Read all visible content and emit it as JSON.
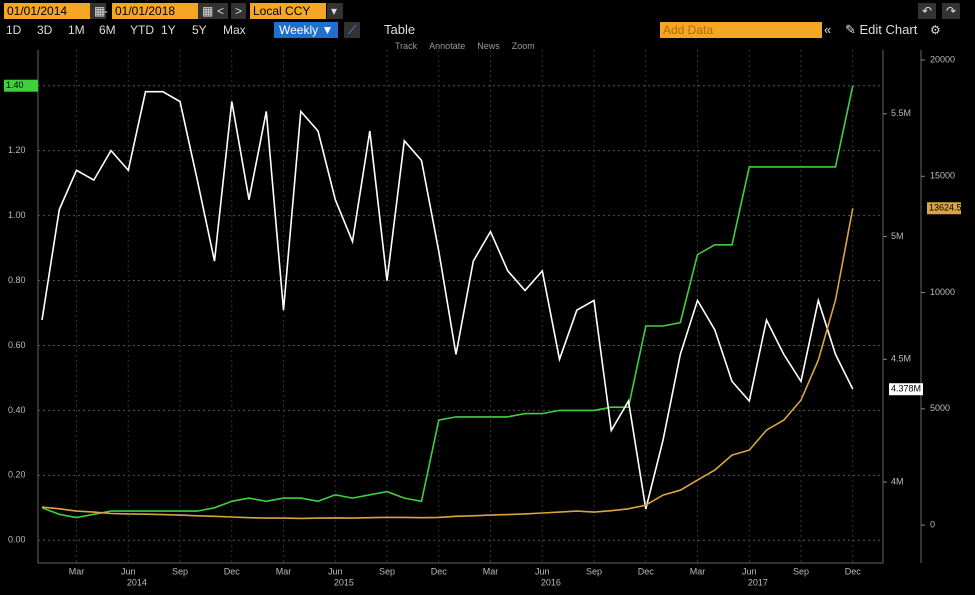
{
  "toolbar": {
    "start_date": "01/01/2014",
    "end_date": "01/01/2018",
    "currency": "Local CCY",
    "periods": [
      "1D",
      "3D",
      "1M",
      "6M",
      "YTD",
      "1Y",
      "5Y",
      "Max"
    ],
    "frequency": "Weekly ▼",
    "table": "Table",
    "add_data": "Add Data",
    "edit_chart": "Edit Chart",
    "tools": [
      "Track",
      "Annotate",
      "News",
      "Zoom"
    ]
  },
  "chart_data": {
    "type": "line",
    "x": [
      "2014-01",
      "2014-02",
      "2014-03",
      "2014-04",
      "2014-05",
      "2014-06",
      "2014-07",
      "2014-08",
      "2014-09",
      "2014-10",
      "2014-11",
      "2014-12",
      "2015-01",
      "2015-02",
      "2015-03",
      "2015-04",
      "2015-05",
      "2015-06",
      "2015-07",
      "2015-08",
      "2015-09",
      "2015-10",
      "2015-11",
      "2015-12",
      "2016-01",
      "2016-02",
      "2016-03",
      "2016-04",
      "2016-05",
      "2016-06",
      "2016-07",
      "2016-08",
      "2016-09",
      "2016-10",
      "2016-11",
      "2016-12",
      "2017-01",
      "2017-02",
      "2017-03",
      "2017-04",
      "2017-05",
      "2017-06",
      "2017-07",
      "2017-08",
      "2017-09",
      "2017-10",
      "2017-11",
      "2017-12"
    ],
    "xticks": [
      {
        "value": "2014-03",
        "label": "Mar"
      },
      {
        "value": "2014-06",
        "label": "Jun"
      },
      {
        "value": "2014-09",
        "label": "Sep"
      },
      {
        "value": "2014-12",
        "label": "Dec"
      },
      {
        "value": "2015-03",
        "label": "Mar"
      },
      {
        "value": "2015-06",
        "label": "Jun"
      },
      {
        "value": "2015-09",
        "label": "Sep"
      },
      {
        "value": "2015-12",
        "label": "Dec"
      },
      {
        "value": "2016-03",
        "label": "Mar"
      },
      {
        "value": "2016-06",
        "label": "Jun"
      },
      {
        "value": "2016-09",
        "label": "Sep"
      },
      {
        "value": "2016-12",
        "label": "Dec"
      },
      {
        "value": "2017-03",
        "label": "Mar"
      },
      {
        "value": "2017-06",
        "label": "Jun"
      },
      {
        "value": "2017-09",
        "label": "Sep"
      },
      {
        "value": "2017-12",
        "label": "Dec"
      }
    ],
    "year_labels": [
      {
        "value": "2014-06",
        "label": "2014"
      },
      {
        "value": "2015-06",
        "label": "2015"
      },
      {
        "value": "2016-06",
        "label": "2016"
      },
      {
        "value": "2017-06",
        "label": "2017"
      }
    ],
    "ylim": [
      -0.07,
      1.51
    ],
    "yticks": [
      {
        "value": 0,
        "label": "0.00"
      },
      {
        "value": 0.2,
        "label": "0.20"
      },
      {
        "value": 0.4,
        "label": "0.40"
      },
      {
        "value": 0.6,
        "label": "0.60"
      },
      {
        "value": 0.8,
        "label": "0.80"
      },
      {
        "value": 1.0,
        "label": "1.00"
      },
      {
        "value": 1.2,
        "label": "1.20"
      },
      {
        "value": 1.4,
        "label": "1.40"
      }
    ],
    "y2lim": [
      3670000,
      5760000
    ],
    "y2ticks": [
      {
        "value": 4000000,
        "label": "4M"
      },
      {
        "value": 4500000,
        "label": "4.5M"
      },
      {
        "value": 5000000,
        "label": "5M"
      },
      {
        "value": 5500000,
        "label": "5.5M"
      }
    ],
    "y3lim": [
      -1630,
      20430
    ],
    "y3ticks": [
      0,
      5000,
      10000,
      15000,
      20000
    ],
    "grid": true,
    "series": [
      {
        "color": "#3fcf3f",
        "axis": "y",
        "values": [
          0.1,
          0.08,
          0.07,
          0.08,
          0.09,
          0.09,
          0.09,
          0.09,
          0.09,
          0.09,
          0.1,
          0.12,
          0.13,
          0.12,
          0.13,
          0.13,
          0.12,
          0.14,
          0.13,
          0.14,
          0.15,
          0.13,
          0.12,
          0.37,
          0.38,
          0.38,
          0.38,
          0.38,
          0.39,
          0.39,
          0.4,
          0.4,
          0.4,
          0.41,
          0.41,
          0.66,
          0.66,
          0.67,
          0.88,
          0.91,
          0.91,
          1.15,
          1.15,
          1.15,
          1.15,
          1.15,
          1.15,
          1.4
        ],
        "value_labels": [
          null,
          null,
          null,
          null,
          null,
          null,
          null,
          null,
          null,
          null,
          null,
          null,
          null,
          null,
          null,
          null,
          null,
          null,
          null,
          null,
          null,
          null,
          null,
          null,
          null,
          null,
          null,
          null,
          null,
          null,
          null,
          null,
          null,
          null,
          null,
          null,
          null,
          null,
          null,
          null,
          null,
          null,
          null,
          null,
          null,
          null,
          null,
          "1.40"
        ]
      },
      {
        "color": "#ffffff",
        "axis": "y2",
        "values": [
          4660000,
          5110000,
          5270000,
          5230000,
          5350000,
          5270000,
          5590000,
          5590000,
          5550000,
          5230000,
          4900000,
          5550000,
          5150000,
          5510000,
          4700000,
          5510000,
          5430000,
          5150000,
          4980000,
          5430000,
          4820000,
          5390000,
          5310000,
          4940000,
          4520000,
          4900000,
          5020000,
          4860000,
          4780000,
          4860000,
          4500000,
          4700000,
          4740000,
          4210000,
          4330000,
          3890000,
          4170000,
          4520000,
          4740000,
          4620000,
          4410000,
          4330000,
          4660000,
          4520000,
          4410000,
          4740000,
          4520000,
          4378000
        ],
        "value_labels": [
          null,
          null,
          null,
          null,
          null,
          null,
          null,
          null,
          null,
          null,
          null,
          null,
          null,
          null,
          null,
          null,
          null,
          null,
          null,
          null,
          null,
          null,
          null,
          null,
          null,
          null,
          null,
          null,
          null,
          null,
          null,
          null,
          null,
          null,
          null,
          null,
          null,
          null,
          null,
          null,
          null,
          null,
          null,
          null,
          null,
          null,
          null,
          "4.378M"
        ]
      },
      {
        "color": "#d9a441",
        "axis": "y3",
        "values": [
          774,
          700,
          600,
          560,
          500,
          480,
          470,
          450,
          430,
          400,
          380,
          350,
          320,
          300,
          300,
          290,
          300,
          310,
          300,
          320,
          330,
          330,
          320,
          330,
          380,
          400,
          430,
          450,
          480,
          520,
          560,
          600,
          560,
          620,
          700,
          860,
          1290,
          1500,
          1935,
          2365,
          3010,
          3226,
          4086,
          4516,
          5376,
          7097,
          9677,
          13624.57
        ]
      }
    ]
  }
}
